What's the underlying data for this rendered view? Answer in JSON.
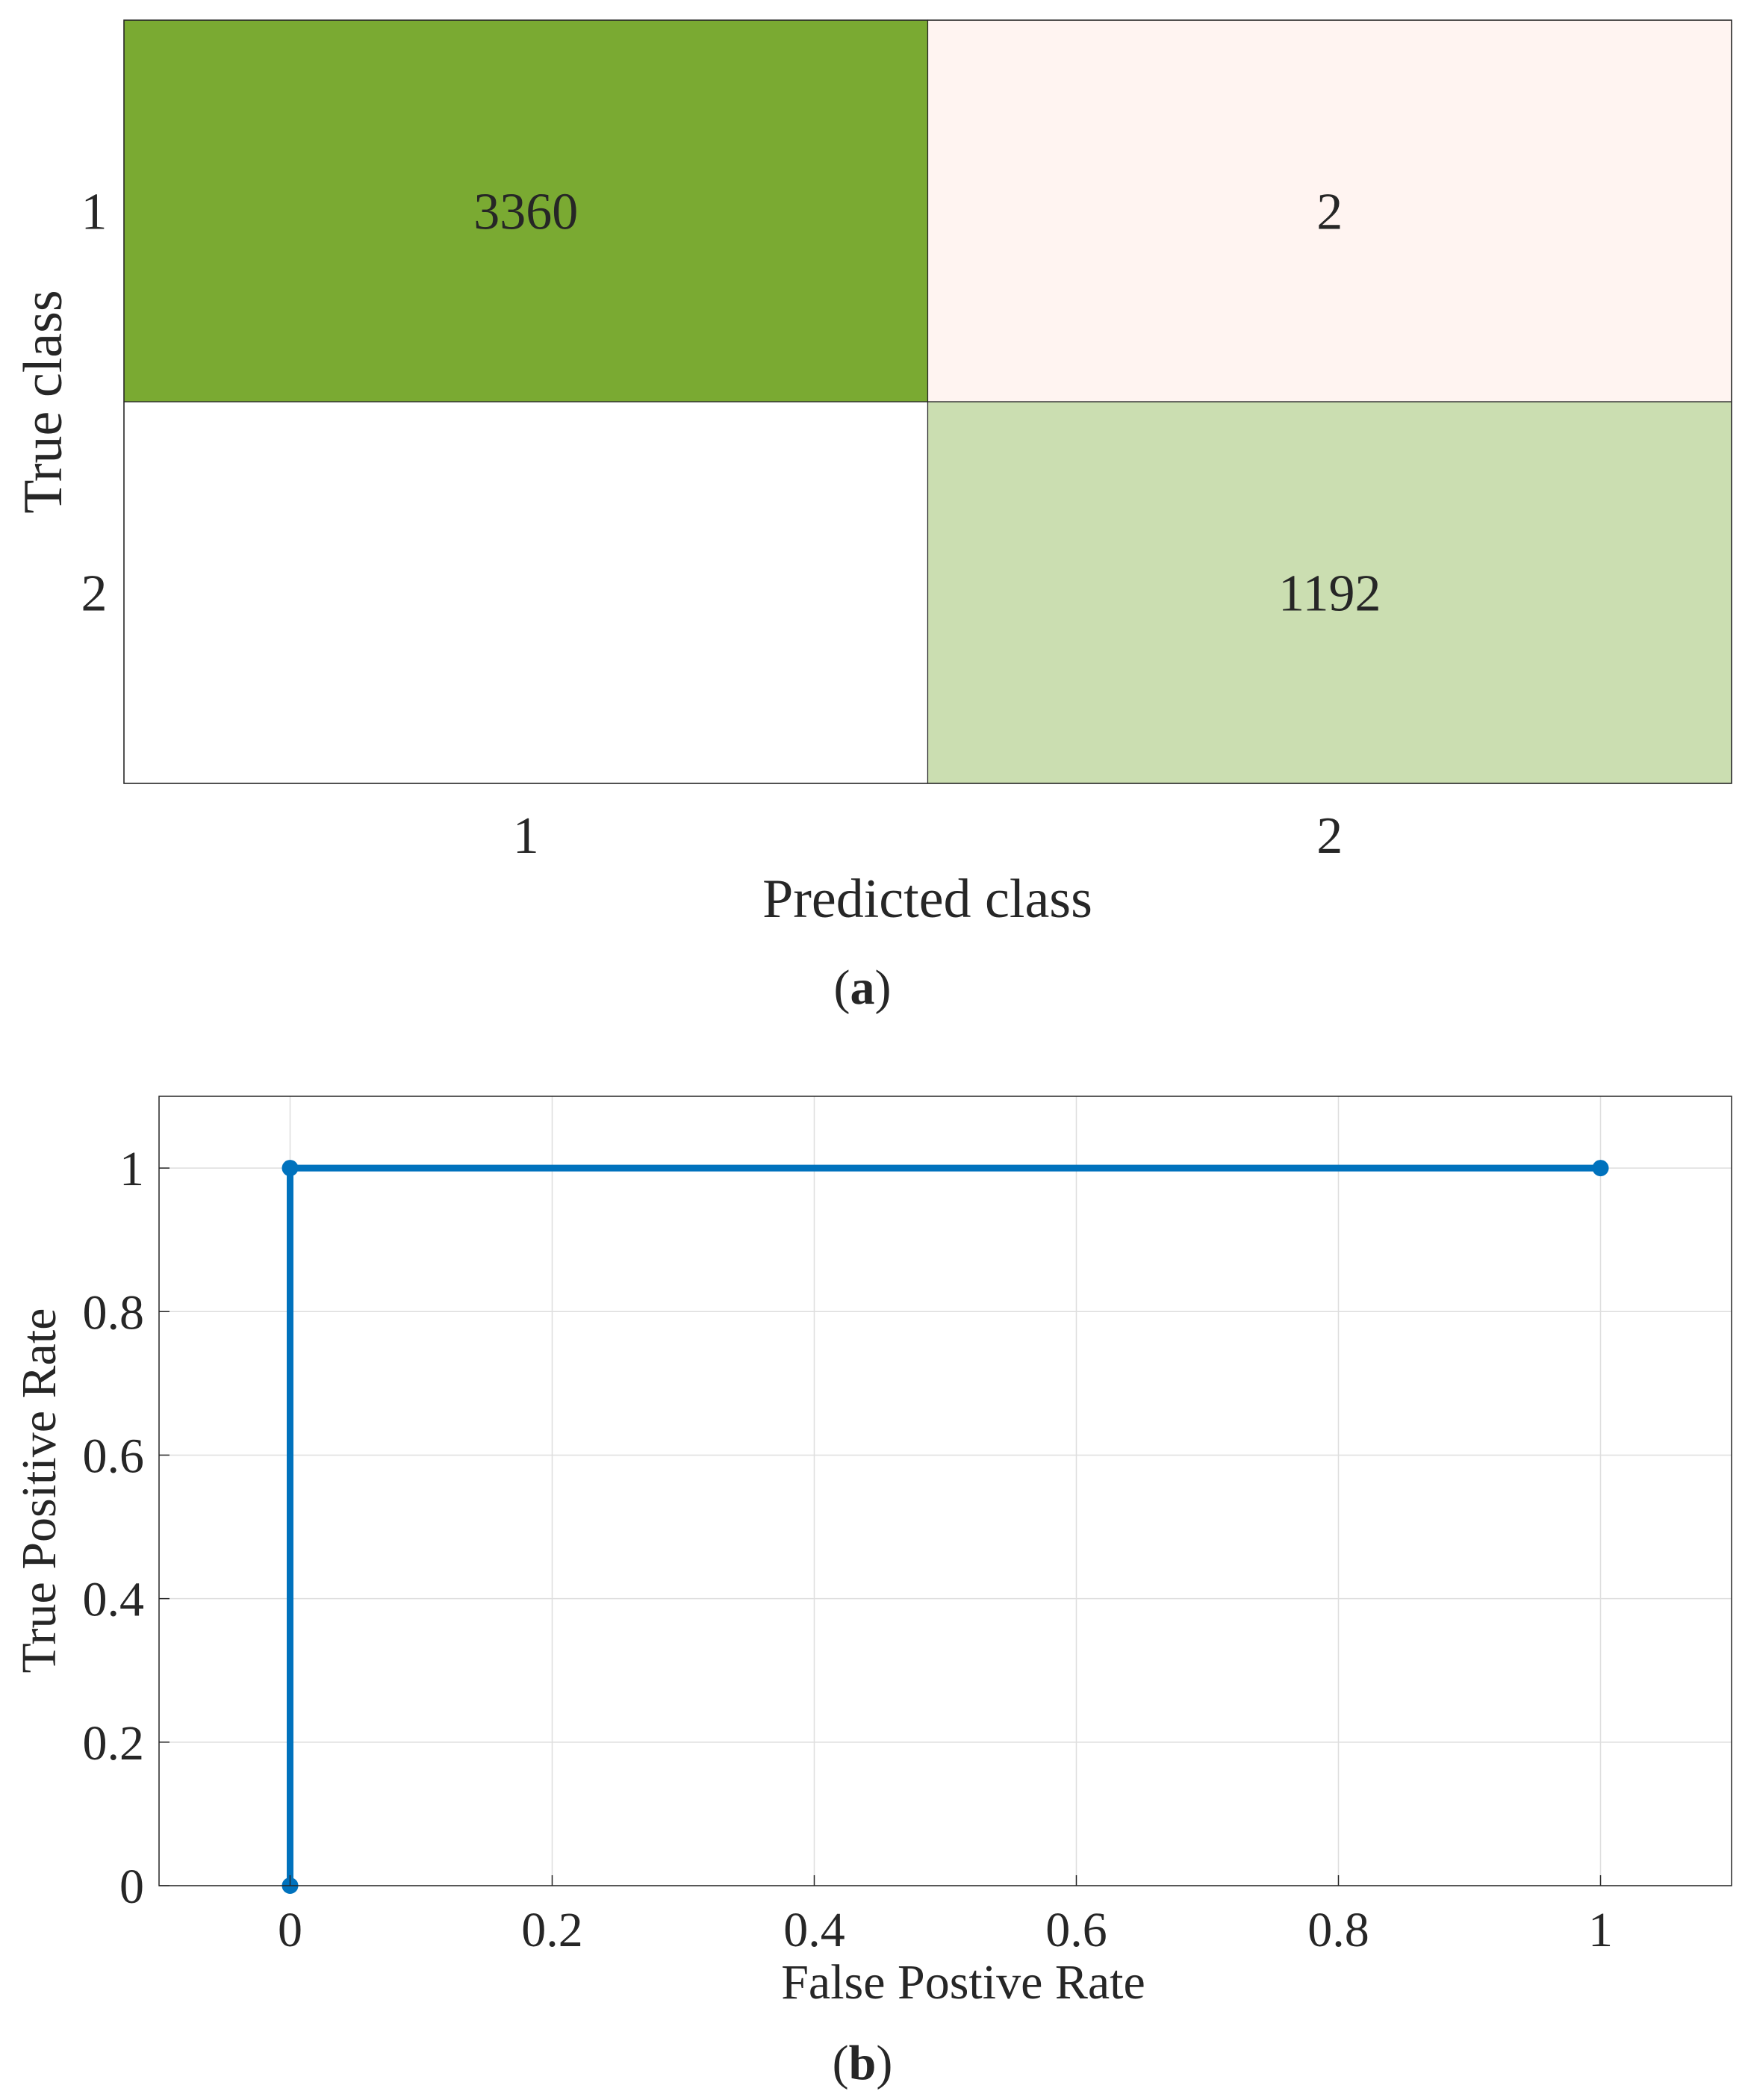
{
  "chart_data": [
    {
      "type": "heatmap",
      "panel_label": "a",
      "xlabel": "Predicted class",
      "ylabel": "True class",
      "x_categories": [
        "1",
        "2"
      ],
      "y_categories": [
        "1",
        "2"
      ],
      "cells": [
        {
          "row": 0,
          "col": 0,
          "value": 3360,
          "label": "3360",
          "color": "#7aaa32"
        },
        {
          "row": 0,
          "col": 1,
          "value": 2,
          "label": "2",
          "color": "#fff4f1"
        },
        {
          "row": 1,
          "col": 0,
          "value": 0,
          "label": "",
          "color": "#ffffff"
        },
        {
          "row": 1,
          "col": 1,
          "value": 1192,
          "label": "1192",
          "color": "#cbdeb1"
        }
      ]
    },
    {
      "type": "line",
      "panel_label": "b",
      "xlabel": "False Postive Rate",
      "ylabel": "True Positive Rate",
      "xlim": [
        -0.1,
        1.1
      ],
      "ylim": [
        0,
        1.1
      ],
      "x_ticks": [
        0,
        0.2,
        0.4,
        0.6,
        0.8,
        1
      ],
      "y_ticks": [
        0,
        0.2,
        0.4,
        0.6,
        0.8,
        1
      ],
      "x_tick_labels": [
        "0",
        "0.2",
        "0.4",
        "0.6",
        "0.8",
        "1"
      ],
      "y_tick_labels": [
        "0",
        "0.2",
        "0.4",
        "0.6",
        "0.8",
        "1"
      ],
      "grid": true,
      "series": [
        {
          "color": "#0072bd",
          "x": [
            0,
            0,
            1
          ],
          "y": [
            0,
            1,
            1
          ]
        }
      ]
    }
  ]
}
